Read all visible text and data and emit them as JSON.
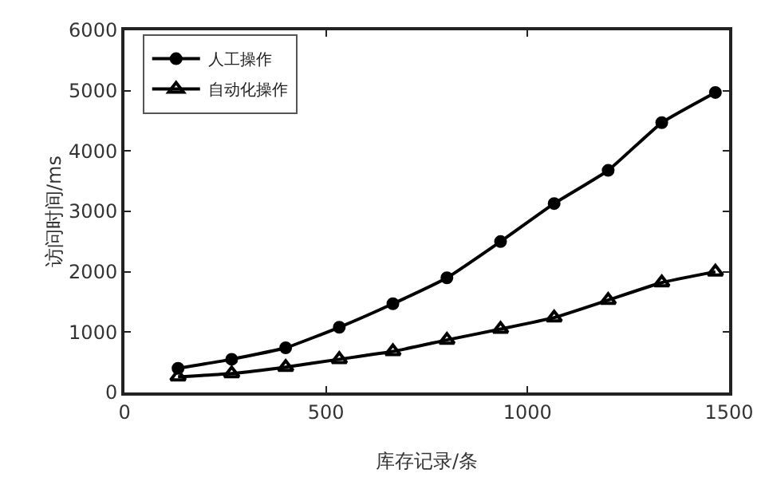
{
  "chart_data": {
    "type": "line",
    "xlabel": "库存记录/条",
    "ylabel": "访问时间/ms",
    "x": [
      133,
      266,
      400,
      533,
      666,
      800,
      933,
      1066,
      1200,
      1333,
      1466
    ],
    "series": [
      {
        "name": "人工操作",
        "color": "#000000",
        "marker": "circle",
        "values": [
          400,
          550,
          740,
          1080,
          1470,
          1900,
          2500,
          3130,
          3680,
          4470,
          4970
        ]
      },
      {
        "name": "自动化操作",
        "color": "#000000",
        "marker": "triangle",
        "values": [
          260,
          315,
          420,
          550,
          680,
          870,
          1050,
          1240,
          1530,
          1820,
          2000
        ]
      }
    ],
    "xlim": [
      0,
      1500
    ],
    "xticks": [
      0,
      500,
      1000,
      1500
    ],
    "ylim": [
      0,
      6000
    ],
    "yticks": [
      0,
      1000,
      2000,
      3000,
      4000,
      5000,
      6000
    ],
    "grid": false,
    "legend": "top left",
    "line_style": "solid"
  }
}
